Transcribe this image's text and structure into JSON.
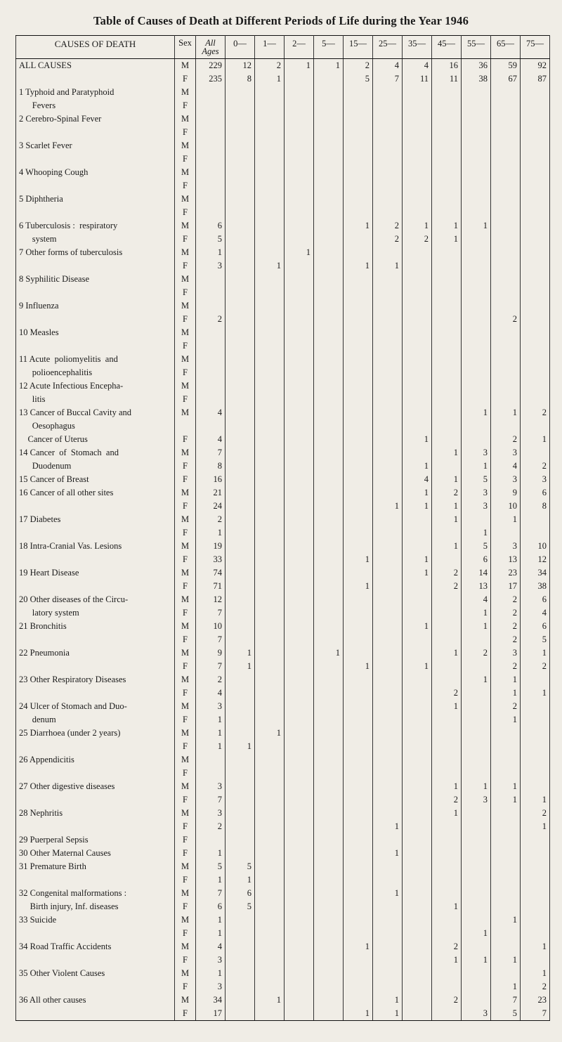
{
  "title": "Table of Causes of Death at Different Periods of Life during the Year 1946",
  "header": {
    "cause": "CAUSES OF DEATH",
    "sex": "Sex",
    "all_ages_top": "All",
    "all_ages_bottom": "Ages",
    "bands": [
      "0—",
      "1—",
      "2—",
      "5—",
      "15—",
      "25—",
      "35—",
      "45—",
      "55—",
      "65—",
      "75—"
    ]
  },
  "style": {
    "background_color": "#f0ede6",
    "text_color": "#1a1a1a",
    "rule_color": "#333333",
    "heavy_rule_color": "#111111",
    "font_family": "Times New Roman",
    "title_fontsize_pt": 12.5,
    "body_fontsize_pt": 9.5
  },
  "rows": [
    {
      "cause": "ALL CAUSES",
      "sex": "M",
      "v": [
        "229",
        "12",
        "2",
        "1",
        "1",
        "2",
        "4",
        "4",
        "16",
        "36",
        "59",
        "92"
      ],
      "top": true
    },
    {
      "cause": "",
      "sex": "F",
      "v": [
        "235",
        "8",
        "1",
        "",
        "",
        "5",
        "7",
        "11",
        "11",
        "38",
        "67",
        "87"
      ]
    },
    {
      "cause": "1 Typhoid and Paratyphoid",
      "sex": "M",
      "v": [
        "",
        "",
        "",
        "",
        "",
        "",
        "",
        "",
        "",
        "",
        "",
        ""
      ]
    },
    {
      "cause": "      Fevers",
      "sex": "F",
      "v": [
        "",
        "",
        "",
        "",
        "",
        "",
        "",
        "",
        "",
        "",
        "",
        ""
      ]
    },
    {
      "cause": "2 Cerebro-Spinal Fever",
      "sex": "M",
      "v": [
        "",
        "",
        "",
        "",
        "",
        "",
        "",
        "",
        "",
        "",
        "",
        ""
      ]
    },
    {
      "cause": "",
      "sex": "F",
      "v": [
        "",
        "",
        "",
        "",
        "",
        "",
        "",
        "",
        "",
        "",
        "",
        ""
      ]
    },
    {
      "cause": "3 Scarlet Fever",
      "sex": "M",
      "v": [
        "",
        "",
        "",
        "",
        "",
        "",
        "",
        "",
        "",
        "",
        "",
        ""
      ]
    },
    {
      "cause": "",
      "sex": "F",
      "v": [
        "",
        "",
        "",
        "",
        "",
        "",
        "",
        "",
        "",
        "",
        "",
        ""
      ]
    },
    {
      "cause": "4 Whooping Cough",
      "sex": "M",
      "v": [
        "",
        "",
        "",
        "",
        "",
        "",
        "",
        "",
        "",
        "",
        "",
        ""
      ]
    },
    {
      "cause": "",
      "sex": "F",
      "v": [
        "",
        "",
        "",
        "",
        "",
        "",
        "",
        "",
        "",
        "",
        "",
        ""
      ]
    },
    {
      "cause": "5 Diphtheria",
      "sex": "M",
      "v": [
        "",
        "",
        "",
        "",
        "",
        "",
        "",
        "",
        "",
        "",
        "",
        ""
      ]
    },
    {
      "cause": "",
      "sex": "F",
      "v": [
        "",
        "",
        "",
        "",
        "",
        "",
        "",
        "",
        "",
        "",
        "",
        ""
      ]
    },
    {
      "cause": "6 Tuberculosis :  respiratory",
      "sex": "M",
      "v": [
        "6",
        "",
        "",
        "",
        "",
        "1",
        "2",
        "1",
        "1",
        "1",
        "",
        ""
      ]
    },
    {
      "cause": "      system",
      "sex": "F",
      "v": [
        "5",
        "",
        "",
        "",
        "",
        "",
        "2",
        "2",
        "1",
        "",
        "",
        ""
      ]
    },
    {
      "cause": "7 Other forms of tuberculosis",
      "sex": "M",
      "v": [
        "1",
        "",
        "",
        "1",
        "",
        "",
        "",
        "",
        "",
        "",
        "",
        ""
      ]
    },
    {
      "cause": "",
      "sex": "F",
      "v": [
        "3",
        "",
        "1",
        "",
        "",
        "1",
        "1",
        "",
        "",
        "",
        "",
        ""
      ]
    },
    {
      "cause": "8 Syphilitic Disease",
      "sex": "M",
      "v": [
        "",
        "",
        "",
        "",
        "",
        "",
        "",
        "",
        "",
        "",
        "",
        ""
      ]
    },
    {
      "cause": "",
      "sex": "F",
      "v": [
        "",
        "",
        "",
        "",
        "",
        "",
        "",
        "",
        "",
        "",
        "",
        ""
      ]
    },
    {
      "cause": "9 Influenza",
      "sex": "M",
      "v": [
        "",
        "",
        "",
        "",
        "",
        "",
        "",
        "",
        "",
        "",
        "",
        ""
      ]
    },
    {
      "cause": "",
      "sex": "F",
      "v": [
        "2",
        "",
        "",
        "",
        "",
        "",
        "",
        "",
        "",
        "",
        "2",
        ""
      ]
    },
    {
      "cause": "10 Measles",
      "sex": "M",
      "v": [
        "",
        "",
        "",
        "",
        "",
        "",
        "",
        "",
        "",
        "",
        "",
        ""
      ]
    },
    {
      "cause": "",
      "sex": "F",
      "v": [
        "",
        "",
        "",
        "",
        "",
        "",
        "",
        "",
        "",
        "",
        "",
        ""
      ]
    },
    {
      "cause": "11 Acute  poliomyelitis  and",
      "sex": "M",
      "v": [
        "",
        "",
        "",
        "",
        "",
        "",
        "",
        "",
        "",
        "",
        "",
        ""
      ]
    },
    {
      "cause": "      polioencephalitis",
      "sex": "F",
      "v": [
        "",
        "",
        "",
        "",
        "",
        "",
        "",
        "",
        "",
        "",
        "",
        ""
      ]
    },
    {
      "cause": "12 Acute Infectious Encepha-",
      "sex": "M",
      "v": [
        "",
        "",
        "",
        "",
        "",
        "",
        "",
        "",
        "",
        "",
        "",
        ""
      ]
    },
    {
      "cause": "      litis",
      "sex": "F",
      "v": [
        "",
        "",
        "",
        "",
        "",
        "",
        "",
        "",
        "",
        "",
        "",
        ""
      ]
    },
    {
      "cause": "13 Cancer of Buccal Cavity and",
      "sex": "M",
      "v": [
        "4",
        "",
        "",
        "",
        "",
        "",
        "",
        "",
        "",
        "1",
        "1",
        "2"
      ]
    },
    {
      "cause": "      Oesophagus",
      "sex": "",
      "v": [
        "",
        "",
        "",
        "",
        "",
        "",
        "",
        "",
        "",
        "",
        "",
        ""
      ]
    },
    {
      "cause": "    Cancer of Uterus",
      "sex": "F",
      "v": [
        "4",
        "",
        "",
        "",
        "",
        "",
        "",
        "1",
        "",
        "",
        "2",
        "1"
      ]
    },
    {
      "cause": "14 Cancer  of  Stomach  and",
      "sex": "M",
      "v": [
        "7",
        "",
        "",
        "",
        "",
        "",
        "",
        "",
        "1",
        "3",
        "3",
        ""
      ]
    },
    {
      "cause": "      Duodenum",
      "sex": "F",
      "v": [
        "8",
        "",
        "",
        "",
        "",
        "",
        "",
        "1",
        "",
        "1",
        "4",
        "2"
      ]
    },
    {
      "cause": "15 Cancer of Breast",
      "sex": "F",
      "v": [
        "16",
        "",
        "",
        "",
        "",
        "",
        "",
        "4",
        "1",
        "5",
        "3",
        "3"
      ]
    },
    {
      "cause": "16 Cancer of all other sites",
      "sex": "M",
      "v": [
        "21",
        "",
        "",
        "",
        "",
        "",
        "",
        "1",
        "2",
        "3",
        "9",
        "6"
      ]
    },
    {
      "cause": "",
      "sex": "F",
      "v": [
        "24",
        "",
        "",
        "",
        "",
        "",
        "1",
        "1",
        "1",
        "3",
        "10",
        "8"
      ]
    },
    {
      "cause": "17 Diabetes",
      "sex": "M",
      "v": [
        "2",
        "",
        "",
        "",
        "",
        "",
        "",
        "",
        "1",
        "",
        "1",
        ""
      ]
    },
    {
      "cause": "",
      "sex": "F",
      "v": [
        "1",
        "",
        "",
        "",
        "",
        "",
        "",
        "",
        "",
        "1",
        "",
        ""
      ]
    },
    {
      "cause": "18 Intra-Cranial Vas. Lesions",
      "sex": "M",
      "v": [
        "19",
        "",
        "",
        "",
        "",
        "",
        "",
        "",
        "1",
        "5",
        "3",
        "10"
      ]
    },
    {
      "cause": "",
      "sex": "F",
      "v": [
        "33",
        "",
        "",
        "",
        "",
        "1",
        "",
        "1",
        "",
        "6",
        "13",
        "12"
      ]
    },
    {
      "cause": "19 Heart Disease",
      "sex": "M",
      "v": [
        "74",
        "",
        "",
        "",
        "",
        "",
        "",
        "1",
        "2",
        "14",
        "23",
        "34"
      ]
    },
    {
      "cause": "",
      "sex": "F",
      "v": [
        "71",
        "",
        "",
        "",
        "",
        "1",
        "",
        "",
        "2",
        "13",
        "17",
        "38"
      ]
    },
    {
      "cause": "20 Other diseases of the Circu-",
      "sex": "M",
      "v": [
        "12",
        "",
        "",
        "",
        "",
        "",
        "",
        "",
        "",
        "4",
        "2",
        "6"
      ]
    },
    {
      "cause": "      latory system",
      "sex": "F",
      "v": [
        "7",
        "",
        "",
        "",
        "",
        "",
        "",
        "",
        "",
        "1",
        "2",
        "4"
      ]
    },
    {
      "cause": "21 Bronchitis",
      "sex": "M",
      "v": [
        "10",
        "",
        "",
        "",
        "",
        "",
        "",
        "1",
        "",
        "1",
        "2",
        "6"
      ]
    },
    {
      "cause": "",
      "sex": "F",
      "v": [
        "7",
        "",
        "",
        "",
        "",
        "",
        "",
        "",
        "",
        "",
        "2",
        "5"
      ]
    },
    {
      "cause": "22 Pneumonia",
      "sex": "M",
      "v": [
        "9",
        "1",
        "",
        "",
        "1",
        "",
        "",
        "",
        "1",
        "2",
        "3",
        "1"
      ]
    },
    {
      "cause": "",
      "sex": "F",
      "v": [
        "7",
        "1",
        "",
        "",
        "",
        "1",
        "",
        "1",
        "",
        "",
        "2",
        "2"
      ]
    },
    {
      "cause": "23 Other Respiratory Diseases",
      "sex": "M",
      "v": [
        "2",
        "",
        "",
        "",
        "",
        "",
        "",
        "",
        "",
        "1",
        "1",
        ""
      ]
    },
    {
      "cause": "",
      "sex": "F",
      "v": [
        "4",
        "",
        "",
        "",
        "",
        "",
        "",
        "",
        "2",
        "",
        "1",
        "1"
      ]
    },
    {
      "cause": "24 Ulcer of Stomach and Duo-",
      "sex": "M",
      "v": [
        "3",
        "",
        "",
        "",
        "",
        "",
        "",
        "",
        "1",
        "",
        "2",
        ""
      ]
    },
    {
      "cause": "      denum",
      "sex": "F",
      "v": [
        "1",
        "",
        "",
        "",
        "",
        "",
        "",
        "",
        "",
        "",
        "1",
        ""
      ]
    },
    {
      "cause": "25 Diarrhoea (under 2 years)",
      "sex": "M",
      "v": [
        "1",
        "",
        "1",
        "",
        "",
        "",
        "",
        "",
        "",
        "",
        "",
        ""
      ]
    },
    {
      "cause": "",
      "sex": "F",
      "v": [
        "1",
        "1",
        "",
        "",
        "",
        "",
        "",
        "",
        "",
        "",
        "",
        ""
      ]
    },
    {
      "cause": "26 Appendicitis",
      "sex": "M",
      "v": [
        "",
        "",
        "",
        "",
        "",
        "",
        "",
        "",
        "",
        "",
        "",
        ""
      ]
    },
    {
      "cause": "",
      "sex": "F",
      "v": [
        "",
        "",
        "",
        "",
        "",
        "",
        "",
        "",
        "",
        "",
        "",
        ""
      ]
    },
    {
      "cause": "27 Other digestive diseases",
      "sex": "M",
      "v": [
        "3",
        "",
        "",
        "",
        "",
        "",
        "",
        "",
        "1",
        "1",
        "1",
        ""
      ]
    },
    {
      "cause": "",
      "sex": "F",
      "v": [
        "7",
        "",
        "",
        "",
        "",
        "",
        "",
        "",
        "2",
        "3",
        "1",
        "1"
      ]
    },
    {
      "cause": "28 Nephritis",
      "sex": "M",
      "v": [
        "3",
        "",
        "",
        "",
        "",
        "",
        "",
        "",
        "1",
        "",
        "",
        "2"
      ]
    },
    {
      "cause": "",
      "sex": "F",
      "v": [
        "2",
        "",
        "",
        "",
        "",
        "",
        "1",
        "",
        "",
        "",
        "",
        "1"
      ]
    },
    {
      "cause": "29 Puerperal Sepsis",
      "sex": "F",
      "v": [
        "",
        "",
        "",
        "",
        "",
        "",
        "",
        "",
        "",
        "",
        "",
        ""
      ]
    },
    {
      "cause": "30 Other Maternal Causes",
      "sex": "F",
      "v": [
        "1",
        "",
        "",
        "",
        "",
        "",
        "1",
        "",
        "",
        "",
        "",
        ""
      ]
    },
    {
      "cause": "31 Premature Birth",
      "sex": "M",
      "v": [
        "5",
        "5",
        "",
        "",
        "",
        "",
        "",
        "",
        "",
        "",
        "",
        ""
      ]
    },
    {
      "cause": "",
      "sex": "F",
      "v": [
        "1",
        "1",
        "",
        "",
        "",
        "",
        "",
        "",
        "",
        "",
        "",
        ""
      ]
    },
    {
      "cause": "32 Congenital malformations :",
      "sex": "M",
      "v": [
        "7",
        "6",
        "",
        "",
        "",
        "",
        "1",
        "",
        "",
        "",
        "",
        ""
      ]
    },
    {
      "cause": "     Birth injury, Inf. diseases",
      "sex": "F",
      "v": [
        "6",
        "5",
        "",
        "",
        "",
        "",
        "",
        "",
        "1",
        "",
        "",
        ""
      ]
    },
    {
      "cause": "33 Suicide",
      "sex": "M",
      "v": [
        "1",
        "",
        "",
        "",
        "",
        "",
        "",
        "",
        "",
        "",
        "1",
        ""
      ]
    },
    {
      "cause": "",
      "sex": "F",
      "v": [
        "1",
        "",
        "",
        "",
        "",
        "",
        "",
        "",
        "",
        "1",
        "",
        ""
      ]
    },
    {
      "cause": "34 Road Traffic Accidents",
      "sex": "M",
      "v": [
        "4",
        "",
        "",
        "",
        "",
        "1",
        "",
        "",
        "2",
        "",
        "",
        "1"
      ]
    },
    {
      "cause": "",
      "sex": "F",
      "v": [
        "3",
        "",
        "",
        "",
        "",
        "",
        "",
        "",
        "1",
        "1",
        "1",
        ""
      ]
    },
    {
      "cause": "35 Other Violent Causes",
      "sex": "M",
      "v": [
        "1",
        "",
        "",
        "",
        "",
        "",
        "",
        "",
        "",
        "",
        "",
        "1"
      ]
    },
    {
      "cause": "",
      "sex": "F",
      "v": [
        "3",
        "",
        "",
        "",
        "",
        "",
        "",
        "",
        "",
        "",
        "1",
        "2"
      ]
    },
    {
      "cause": "36 All other causes",
      "sex": "M",
      "v": [
        "34",
        "",
        "1",
        "",
        "",
        "",
        "1",
        "",
        "2",
        "",
        "7",
        "23"
      ]
    },
    {
      "cause": "",
      "sex": "F",
      "v": [
        "17",
        "",
        "",
        "",
        "",
        "1",
        "1",
        "",
        "",
        "3",
        "5",
        "7"
      ]
    }
  ]
}
